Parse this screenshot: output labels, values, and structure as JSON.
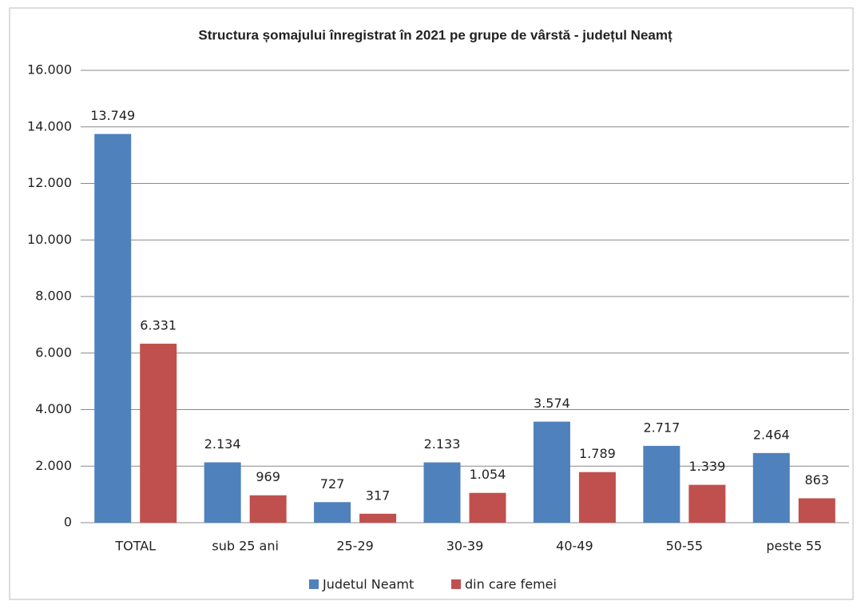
{
  "chart_data": {
    "type": "bar",
    "title": "Structura șomajului înregistrat în 2021 pe grupe de vârstă - județul Neamț",
    "categories": [
      "TOTAL",
      "sub 25 ani",
      "25-29",
      "30-39",
      "40-49",
      "50-55",
      "peste 55"
    ],
    "series": [
      {
        "name": "Judetul Neamt",
        "color": "#4f81bd",
        "values": [
          13749,
          2134,
          727,
          2133,
          3574,
          2717,
          2464
        ],
        "value_labels": [
          "13.749",
          "2.134",
          "727",
          "2.133",
          "3.574",
          "2.717",
          "2.464"
        ]
      },
      {
        "name": "din care femei",
        "color": "#c0504d",
        "values": [
          6331,
          969,
          317,
          1054,
          1789,
          1339,
          863
        ],
        "value_labels": [
          "6.331",
          "969",
          "317",
          "1.054",
          "1.789",
          "1.339",
          "863"
        ]
      }
    ],
    "ylim": [
      0,
      16000
    ],
    "yticks": [
      0,
      {
        "value": 2000,
        "label": "2.000"
      },
      {
        "value": 4000,
        "label": "4.000"
      },
      {
        "value": 6000,
        "label": "6.000"
      },
      {
        "value": 8000,
        "label": "8.000"
      },
      {
        "value": 10000,
        "label": "10.000"
      },
      {
        "value": 12000,
        "label": "12.000"
      },
      {
        "value": 14000,
        "label": "14.000"
      },
      {
        "value": 16000,
        "label": "16.000"
      }
    ],
    "grid": true,
    "legend": "bottom"
  }
}
